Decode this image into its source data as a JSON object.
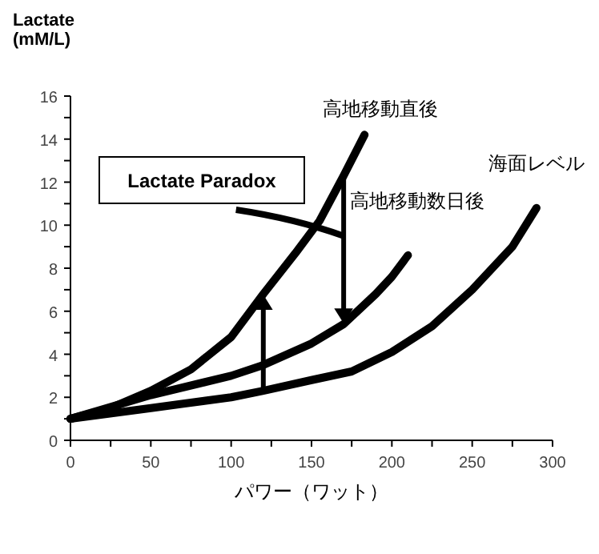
{
  "chart_data": {
    "type": "line",
    "ylabel": "Lactate\n(mM/L)",
    "xlabel": "パワー（ワット）",
    "xlim": [
      0,
      300
    ],
    "xticks": [
      0,
      {
        "value": 25,
        "label": null
      },
      50,
      {
        "value": 75,
        "label": null
      },
      100,
      {
        "value": 125,
        "label": null
      },
      150,
      {
        "value": 175,
        "label": null
      },
      200,
      {
        "value": 225,
        "label": null
      },
      250,
      {
        "value": 275,
        "label": null
      },
      300
    ],
    "ylim": [
      0,
      16
    ],
    "yticks": [
      0,
      {
        "value": 1,
        "label": null
      },
      2,
      {
        "value": 3,
        "label": null
      },
      4,
      {
        "value": 5,
        "label": null
      },
      6,
      {
        "value": 7,
        "label": null
      },
      8,
      {
        "value": 9,
        "label": null
      },
      10,
      {
        "value": 11,
        "label": null
      },
      12,
      {
        "value": 13,
        "label": null
      },
      14,
      {
        "value": 15,
        "label": null
      },
      16
    ],
    "series": [
      {
        "name": "高地移動直後",
        "color": "#000000",
        "x": [
          0,
          25,
          50,
          75,
          100,
          120,
          140,
          155,
          170,
          183
        ],
        "values": [
          1,
          1.5,
          2.3,
          3.3,
          4.8,
          6.8,
          8.7,
          10.2,
          12.3,
          14.2
        ]
      },
      {
        "name": "高地移動数日後",
        "color": "#000000",
        "x": [
          0,
          50,
          100,
          120,
          150,
          170,
          190,
          200,
          210
        ],
        "values": [
          1,
          2.1,
          3.0,
          3.5,
          4.5,
          5.4,
          6.8,
          7.6,
          8.6
        ]
      },
      {
        "name": "海面レベル",
        "color": "#000000",
        "x": [
          0,
          50,
          100,
          120,
          150,
          175,
          200,
          225,
          250,
          275,
          290
        ],
        "values": [
          1,
          1.5,
          2.0,
          2.3,
          2.8,
          3.2,
          4.1,
          5.3,
          7.0,
          9.0,
          10.8
        ]
      }
    ],
    "annotations": [
      "Lactate Paradox"
    ],
    "marker": "none",
    "line_style": "solid"
  }
}
